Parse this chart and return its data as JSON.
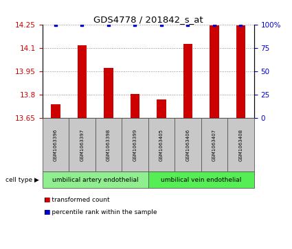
{
  "title": "GDS4778 / 201842_s_at",
  "samples": [
    "GSM1063396",
    "GSM1063397",
    "GSM1063398",
    "GSM1063399",
    "GSM1063405",
    "GSM1063406",
    "GSM1063407",
    "GSM1063408"
  ],
  "red_values": [
    13.74,
    14.12,
    13.975,
    13.805,
    13.77,
    14.13,
    14.245,
    14.245
  ],
  "blue_values": [
    100,
    100,
    100,
    100,
    100,
    100,
    100,
    100
  ],
  "ylim_left": [
    13.65,
    14.25
  ],
  "ylim_right": [
    0,
    100
  ],
  "yticks_left": [
    13.65,
    13.8,
    13.95,
    14.1,
    14.25
  ],
  "yticks_right": [
    0,
    25,
    50,
    75,
    100
  ],
  "ytick_labels_right": [
    "0",
    "25",
    "50",
    "75",
    "100%"
  ],
  "group1_label": "umbilical artery endothelial",
  "group2_label": "umbilical vein endothelial",
  "group1_indices": [
    0,
    1,
    2,
    3
  ],
  "group2_indices": [
    4,
    5,
    6,
    7
  ],
  "cell_type_label": "cell type",
  "legend1_label": "transformed count",
  "legend2_label": "percentile rank within the sample",
  "bar_color": "#cc0000",
  "dot_color": "#0000cc",
  "group1_color": "#90ee90",
  "group2_color": "#55ee55",
  "sample_box_color": "#c8c8c8",
  "tick_label_color_left": "#cc0000",
  "tick_label_color_right": "#0000cc",
  "bar_width": 0.35
}
